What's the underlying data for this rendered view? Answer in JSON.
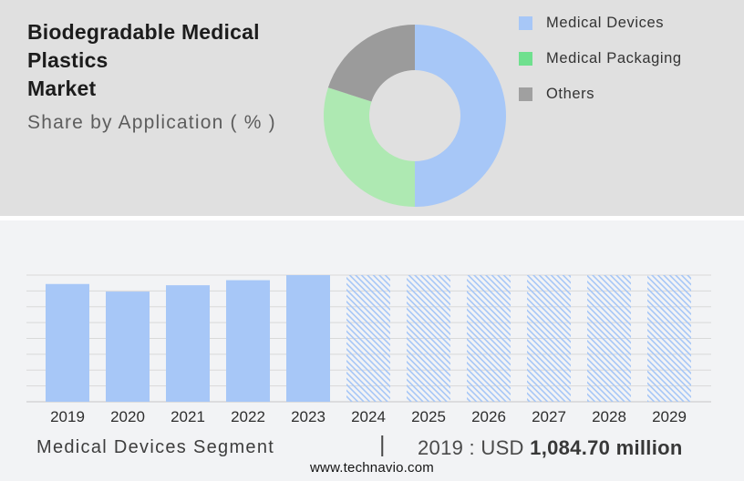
{
  "header": {
    "title": "Biodegradable Medical Plastics Market",
    "title_line1": "Biodegradable Medical Plastics",
    "title_line2": "Market",
    "subtitle": "Share by Application ( % )"
  },
  "legend": {
    "position": "right",
    "items": [
      {
        "label": "Medical Devices",
        "color": "#a7c7f7"
      },
      {
        "label": "Medical Packaging",
        "color": "#6fe08e"
      },
      {
        "label": "Others",
        "color": "#a0a0a0"
      }
    ]
  },
  "footer": {
    "segment_label": "Medical Devices Segment",
    "separator": "|",
    "value_prefix": "2019 : USD",
    "value_bold": "1,084.70 million",
    "website": "www.technavio.com"
  },
  "colors": {
    "top_background": "#e0e0e0",
    "bottom_background": "#f2f3f5",
    "divider": "#ffffff",
    "bar_blue": "#a7c7f7",
    "donut_green": "#aee9b2",
    "slice_gray": "#9b9b9b",
    "gridline": "#d9d9d9",
    "baseline": "#c6c6c6",
    "axis_label_text": "#2e2e2e"
  },
  "chart_data": [
    {
      "type": "pie",
      "subtype": "donut",
      "title": "Share by Application ( % )",
      "labels": [
        "Medical Devices",
        "Medical Packaging",
        "Others"
      ],
      "values": [
        50,
        30,
        20
      ],
      "colors": [
        "#a7c7f7",
        "#aee9b2",
        "#9b9b9b"
      ],
      "start_angle": "12-oclock-clockwise",
      "inner_radius_ratio": 0.5,
      "legend_position": "right",
      "data_labels": false
    },
    {
      "type": "bar",
      "categories": [
        "2019",
        "2020",
        "2021",
        "2022",
        "2023",
        "2024",
        "2025",
        "2026",
        "2027",
        "2028",
        "2029"
      ],
      "values_pct_of_max": [
        93,
        87,
        92,
        96,
        100,
        100,
        100,
        100,
        100,
        100,
        100
      ],
      "forecast_hatched": [
        false,
        false,
        false,
        false,
        false,
        true,
        true,
        true,
        true,
        true,
        true
      ],
      "known_point": {
        "year": "2019",
        "value": "USD 1,084.70 million"
      },
      "title": "Medical Devices Segment",
      "xlabel": "",
      "ylabel": "",
      "y_axis_ticks_visible": false,
      "grid": true,
      "gridline_count": 9
    }
  ]
}
